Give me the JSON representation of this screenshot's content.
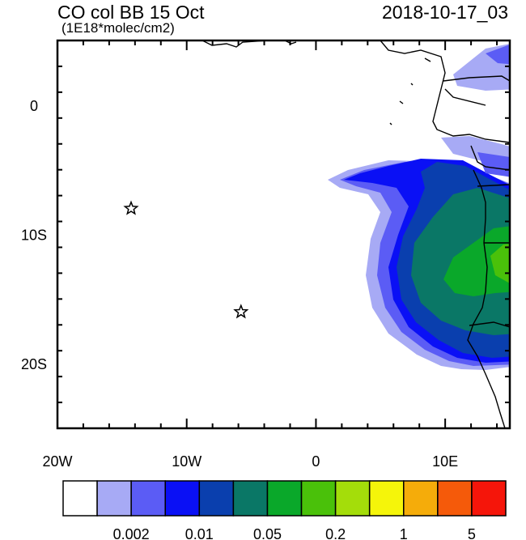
{
  "header": {
    "title": "CO col BB 15 Oct",
    "units": "(1E18*molec/cm2)",
    "timestamp": "2018-10-17_03"
  },
  "axes": {
    "x_ticks": [
      {
        "value": -20,
        "label": "20W"
      },
      {
        "value": -10,
        "label": "10W"
      },
      {
        "value": 0,
        "label": "0"
      },
      {
        "value": 10,
        "label": "10E"
      }
    ],
    "y_ticks": [
      {
        "value": 0,
        "label": "0"
      },
      {
        "value": -10,
        "label": "10S"
      },
      {
        "value": -20,
        "label": "20S"
      }
    ],
    "lon_range": [
      -20,
      15
    ],
    "lat_range": [
      -25,
      5
    ]
  },
  "markers": [
    {
      "name": "star",
      "lon": -14.3,
      "lat": -8.0
    },
    {
      "name": "star",
      "lon": -5.8,
      "lat": -16.0
    }
  ],
  "colorbar": {
    "colors": [
      "#ffffff",
      "#a7aaf5",
      "#5b5cf5",
      "#0a10f5",
      "#0a3fae",
      "#0a7766",
      "#0aa82a",
      "#4ac10a",
      "#a4dd0a",
      "#f5f50a",
      "#f5ac0a",
      "#f55a0a",
      "#f5150a"
    ],
    "labels": [
      {
        "after_box": 2,
        "text": "0.002"
      },
      {
        "after_box": 4,
        "text": "0.01"
      },
      {
        "after_box": 6,
        "text": "0.05"
      },
      {
        "after_box": 8,
        "text": "0.2"
      },
      {
        "after_box": 10,
        "text": "1"
      },
      {
        "after_box": 12,
        "text": "5"
      }
    ]
  }
}
